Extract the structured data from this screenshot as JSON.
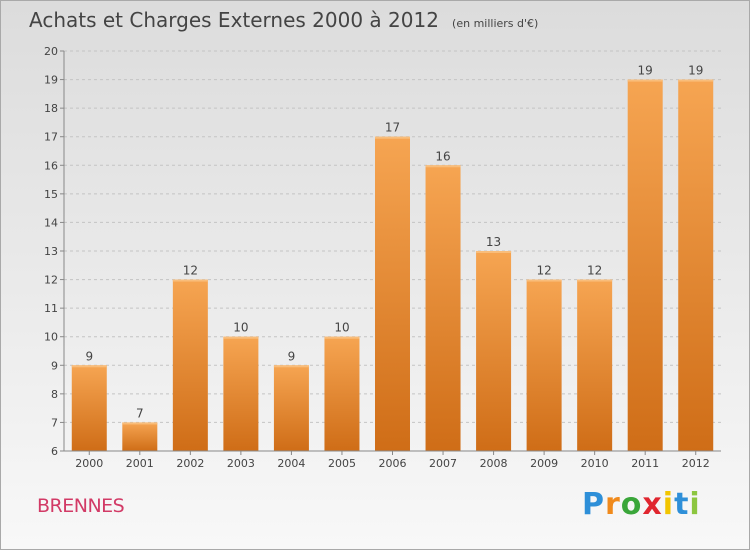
{
  "title": "Achats et Charges Externes 2000 à 2012",
  "unit": "(en milliers d'€)",
  "place": "BRENNES",
  "logo": {
    "text": "Proxiti",
    "letters": [
      {
        "ch": "P",
        "color": "#2e8fd8"
      },
      {
        "ch": "r",
        "color": "#f08a1c"
      },
      {
        "ch": "o",
        "color": "#3aa63a"
      },
      {
        "ch": "x",
        "color": "#e0262f"
      },
      {
        "ch": "i",
        "color": "#f2c500"
      },
      {
        "ch": "t",
        "color": "#2e8fd8"
      },
      {
        "ch": "i",
        "color": "#8cc63f"
      }
    ]
  },
  "chart_data": {
    "type": "bar",
    "title": "Achats et Charges Externes 2000 à 2012",
    "unit": "(en milliers d'€)",
    "categories": [
      "2000",
      "2001",
      "2002",
      "2003",
      "2004",
      "2005",
      "2006",
      "2007",
      "2008",
      "2009",
      "2010",
      "2011",
      "2012"
    ],
    "values": [
      9,
      7,
      12,
      10,
      9,
      10,
      17,
      16,
      13,
      12,
      12,
      19,
      19
    ],
    "ylim": [
      6,
      20
    ],
    "yticks": [
      6,
      7,
      8,
      9,
      10,
      11,
      12,
      13,
      14,
      15,
      16,
      17,
      18,
      19,
      20
    ],
    "grid": true,
    "bar_color_top": "#f6a552",
    "bar_color_bottom": "#cf6d17"
  }
}
